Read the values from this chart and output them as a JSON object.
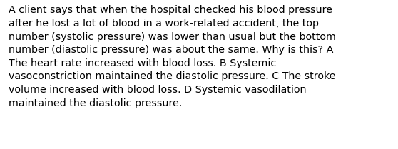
{
  "lines": [
    "A client says that when the hospital checked his blood pressure",
    "after he lost a lot of blood in a work-related accident, the top",
    "number (systolic pressure) was lower than usual but the bottom",
    "number (diastolic pressure) was about the same. Why is this? A",
    "The heart rate increased with blood loss. B Systemic",
    "vasoconstriction maintained the diastolic pressure. C The stroke",
    "volume increased with blood loss. D Systemic vasodilation",
    "maintained the diastolic pressure."
  ],
  "background_color": "#ffffff",
  "text_color": "#000000",
  "font_size": 10.3,
  "fig_width": 5.58,
  "fig_height": 2.09,
  "dpi": 100,
  "font_family": "DejaVu Sans"
}
